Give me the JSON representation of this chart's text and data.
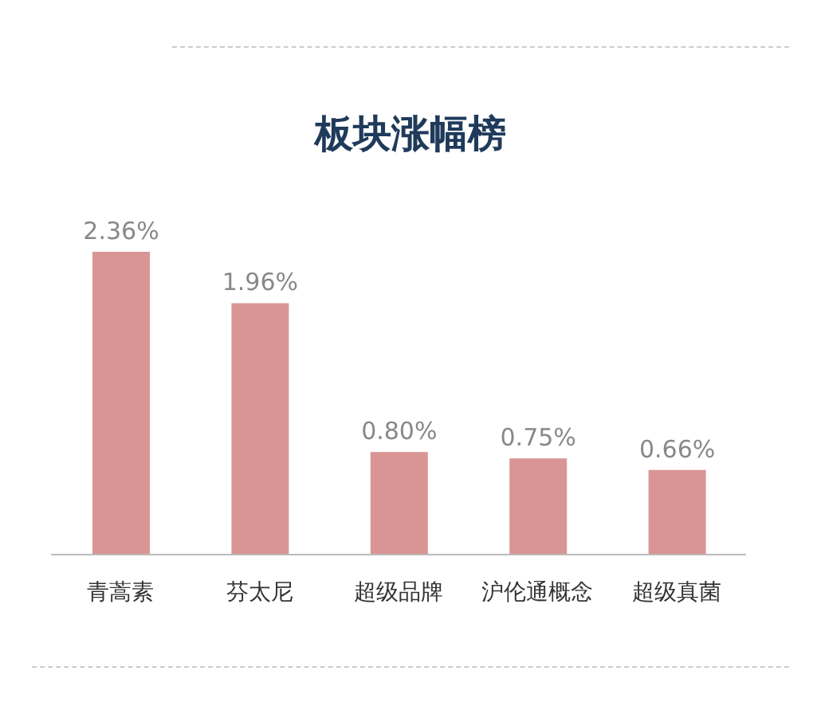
{
  "chart_data": {
    "type": "bar",
    "title": "板块涨幅榜",
    "categories": [
      "青蒿素",
      "芬太尼",
      "超级品牌",
      "沪伦通概念",
      "超级真菌"
    ],
    "values": [
      2.36,
      1.96,
      0.8,
      0.75,
      0.66
    ],
    "value_labels": [
      "2.36%",
      "1.96%",
      "0.80%",
      "0.75%",
      "0.66%"
    ],
    "color": "#d99594",
    "grid": false,
    "legend": false
  }
}
